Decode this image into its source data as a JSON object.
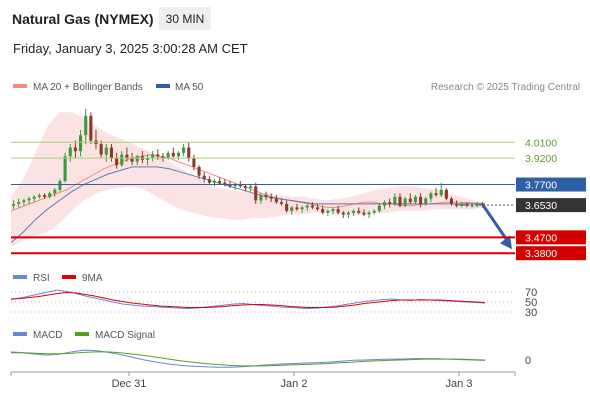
{
  "header": {
    "instrument": "Natural Gas (NYMEX)",
    "timeframe": "30 MIN",
    "datetime": "Friday, January 3, 2025 3:00:28 AM CET"
  },
  "credit": "Research © 2025 Trading Central",
  "colors": {
    "ma20": "#f08b80",
    "bollinger_fill": "#fbdada",
    "ma50": "#5b7bb5",
    "bull_candle": "#3c9a3c",
    "bear_candle": "#8a3a2a",
    "resistance": "#a6cf7a",
    "pivot": "#2f5fa7",
    "support": "#d40000",
    "last_price": "#333333",
    "rsi": "#6b86d6",
    "rsi_ma": "#e00000",
    "macd": "#6b86d6",
    "macd_signal": "#55a020",
    "arrow": "#2f5fa7"
  },
  "chart_data": [
    {
      "type": "candlestick",
      "legend": [
        "MA 20 + Bollinger Bands",
        "MA 50"
      ],
      "legend_position": "top-left",
      "ylim": [
        3.33,
        4.25
      ],
      "x_ticks": [
        "Dec 31",
        "Jan 2",
        "Jan 3"
      ],
      "levels": [
        {
          "name": "resistance-2",
          "value": 4.01,
          "label": "4.0100"
        },
        {
          "name": "resistance-1",
          "value": 3.92,
          "label": "3.9200"
        },
        {
          "name": "pivot",
          "value": 3.77,
          "label": "3.7700"
        },
        {
          "name": "last-price",
          "value": 3.653,
          "label": "3.6530"
        },
        {
          "name": "support-1",
          "value": 3.47,
          "label": "3.4700"
        },
        {
          "name": "support-2",
          "value": 3.38,
          "label": "3.3800"
        }
      ],
      "candles": [
        [
          3.65,
          3.68,
          3.63,
          3.66
        ],
        [
          3.66,
          3.69,
          3.64,
          3.67
        ],
        [
          3.67,
          3.69,
          3.65,
          3.68
        ],
        [
          3.68,
          3.7,
          3.66,
          3.69
        ],
        [
          3.69,
          3.71,
          3.67,
          3.7
        ],
        [
          3.7,
          3.72,
          3.69,
          3.71
        ],
        [
          3.71,
          3.72,
          3.69,
          3.7
        ],
        [
          3.7,
          3.73,
          3.69,
          3.72
        ],
        [
          3.72,
          3.75,
          3.7,
          3.74
        ],
        [
          3.74,
          3.8,
          3.73,
          3.79
        ],
        [
          3.79,
          3.95,
          3.78,
          3.93
        ],
        [
          3.93,
          4.0,
          3.9,
          3.98
        ],
        [
          3.98,
          4.02,
          3.92,
          3.96
        ],
        [
          3.96,
          4.08,
          3.93,
          4.05
        ],
        [
          4.05,
          4.2,
          4.0,
          4.16
        ],
        [
          4.16,
          4.18,
          4.0,
          4.02
        ],
        [
          4.02,
          4.08,
          3.97,
          4.0
        ],
        [
          4.0,
          4.02,
          3.92,
          3.94
        ],
        [
          3.94,
          4.0,
          3.9,
          3.98
        ],
        [
          3.98,
          4.0,
          3.9,
          3.92
        ],
        [
          3.92,
          3.95,
          3.86,
          3.88
        ],
        [
          3.88,
          3.96,
          3.87,
          3.94
        ],
        [
          3.94,
          3.98,
          3.9,
          3.92
        ],
        [
          3.92,
          3.95,
          3.88,
          3.9
        ],
        [
          3.9,
          3.94,
          3.88,
          3.93
        ],
        [
          3.93,
          3.96,
          3.89,
          3.91
        ],
        [
          3.91,
          3.94,
          3.88,
          3.92
        ],
        [
          3.92,
          3.96,
          3.9,
          3.94
        ],
        [
          3.94,
          3.97,
          3.91,
          3.93
        ],
        [
          3.93,
          3.95,
          3.9,
          3.92
        ],
        [
          3.92,
          3.96,
          3.91,
          3.95
        ],
        [
          3.95,
          3.98,
          3.92,
          3.93
        ],
        [
          3.93,
          3.96,
          3.91,
          3.95
        ],
        [
          3.95,
          4.0,
          3.93,
          3.98
        ],
        [
          3.98,
          4.01,
          3.9,
          3.92
        ],
        [
          3.92,
          3.94,
          3.85,
          3.87
        ],
        [
          3.87,
          3.88,
          3.8,
          3.82
        ],
        [
          3.82,
          3.84,
          3.78,
          3.8
        ],
        [
          3.8,
          3.82,
          3.77,
          3.78
        ],
        [
          3.78,
          3.8,
          3.76,
          3.79
        ],
        [
          3.79,
          3.81,
          3.77,
          3.78
        ],
        [
          3.78,
          3.8,
          3.76,
          3.77
        ],
        [
          3.77,
          3.79,
          3.75,
          3.76
        ],
        [
          3.76,
          3.78,
          3.74,
          3.77
        ],
        [
          3.77,
          3.79,
          3.75,
          3.76
        ],
        [
          3.76,
          3.77,
          3.73,
          3.75
        ],
        [
          3.75,
          3.77,
          3.73,
          3.76
        ],
        [
          3.76,
          3.78,
          3.66,
          3.68
        ],
        [
          3.68,
          3.72,
          3.66,
          3.71
        ],
        [
          3.71,
          3.73,
          3.68,
          3.7
        ],
        [
          3.7,
          3.72,
          3.67,
          3.69
        ],
        [
          3.69,
          3.71,
          3.66,
          3.67
        ],
        [
          3.67,
          3.69,
          3.65,
          3.66
        ],
        [
          3.66,
          3.68,
          3.61,
          3.62
        ],
        [
          3.62,
          3.65,
          3.6,
          3.64
        ],
        [
          3.64,
          3.66,
          3.62,
          3.63
        ],
        [
          3.63,
          3.65,
          3.61,
          3.64
        ],
        [
          3.64,
          3.66,
          3.62,
          3.65
        ],
        [
          3.65,
          3.67,
          3.63,
          3.64
        ],
        [
          3.64,
          3.66,
          3.62,
          3.63
        ],
        [
          3.63,
          3.65,
          3.6,
          3.61
        ],
        [
          3.61,
          3.63,
          3.59,
          3.62
        ],
        [
          3.62,
          3.64,
          3.6,
          3.63
        ],
        [
          3.63,
          3.65,
          3.6,
          3.61
        ],
        [
          3.61,
          3.62,
          3.58,
          3.6
        ],
        [
          3.6,
          3.62,
          3.58,
          3.61
        ],
        [
          3.61,
          3.63,
          3.59,
          3.62
        ],
        [
          3.62,
          3.64,
          3.6,
          3.61
        ],
        [
          3.61,
          3.63,
          3.59,
          3.6
        ],
        [
          3.6,
          3.62,
          3.58,
          3.61
        ],
        [
          3.61,
          3.63,
          3.6,
          3.62
        ],
        [
          3.62,
          3.66,
          3.61,
          3.65
        ],
        [
          3.65,
          3.68,
          3.63,
          3.67
        ],
        [
          3.67,
          3.69,
          3.64,
          3.66
        ],
        [
          3.66,
          3.72,
          3.65,
          3.7
        ],
        [
          3.7,
          3.72,
          3.64,
          3.65
        ],
        [
          3.65,
          3.7,
          3.64,
          3.69
        ],
        [
          3.69,
          3.72,
          3.66,
          3.67
        ],
        [
          3.67,
          3.71,
          3.66,
          3.7
        ],
        [
          3.7,
          3.72,
          3.64,
          3.66
        ],
        [
          3.66,
          3.7,
          3.65,
          3.69
        ],
        [
          3.69,
          3.73,
          3.67,
          3.72
        ],
        [
          3.72,
          3.75,
          3.7,
          3.71
        ],
        [
          3.71,
          3.78,
          3.7,
          3.74
        ],
        [
          3.74,
          3.75,
          3.68,
          3.69
        ],
        [
          3.69,
          3.7,
          3.65,
          3.66
        ],
        [
          3.66,
          3.68,
          3.64,
          3.65
        ],
        [
          3.65,
          3.67,
          3.64,
          3.66
        ],
        [
          3.66,
          3.67,
          3.64,
          3.65
        ],
        [
          3.65,
          3.66,
          3.64,
          3.65
        ],
        [
          3.65,
          3.67,
          3.64,
          3.66
        ],
        [
          3.66,
          3.67,
          3.64,
          3.653
        ]
      ],
      "ma20": [
        3.62,
        3.64,
        3.66,
        3.68,
        3.7,
        3.72,
        3.74,
        3.77,
        3.8,
        3.83,
        3.86,
        3.88,
        3.9,
        3.92,
        3.93,
        3.94,
        3.93,
        3.92,
        3.9,
        3.88,
        3.86,
        3.84,
        3.82,
        3.8,
        3.78,
        3.76,
        3.74,
        3.72,
        3.7,
        3.69,
        3.68,
        3.67,
        3.66,
        3.65,
        3.64,
        3.64,
        3.65,
        3.66,
        3.67,
        3.67,
        3.66,
        3.66,
        3.65,
        3.65,
        3.655,
        3.66,
        3.665,
        3.67,
        3.67,
        3.668,
        3.665,
        3.66
      ],
      "bb_upper": [
        3.7,
        3.8,
        3.95,
        4.1,
        4.18,
        4.18,
        4.15,
        4.1,
        4.06,
        4.03,
        4.0,
        3.97,
        3.94,
        3.9,
        3.86,
        3.82,
        3.78,
        3.75,
        3.74,
        3.73,
        3.72,
        3.72,
        3.71,
        3.7,
        3.7,
        3.69,
        3.68,
        3.69,
        3.7,
        3.72,
        3.74,
        3.75,
        3.76,
        3.76,
        3.75,
        3.74,
        3.72,
        3.7,
        3.68,
        3.67
      ],
      "bb_lower": [
        3.42,
        3.45,
        3.48,
        3.5,
        3.55,
        3.62,
        3.68,
        3.72,
        3.74,
        3.75,
        3.76,
        3.74,
        3.7,
        3.66,
        3.63,
        3.61,
        3.59,
        3.58,
        3.57,
        3.57,
        3.58,
        3.58,
        3.59,
        3.6,
        3.6,
        3.61,
        3.61,
        3.6,
        3.6,
        3.6,
        3.61,
        3.61,
        3.62,
        3.62,
        3.62,
        3.63,
        3.63,
        3.63,
        3.63,
        3.64
      ],
      "ma50": [
        3.44,
        3.5,
        3.57,
        3.63,
        3.68,
        3.73,
        3.77,
        3.8,
        3.83,
        3.85,
        3.87,
        3.87,
        3.87,
        3.86,
        3.84,
        3.82,
        3.8,
        3.78,
        3.76,
        3.74,
        3.72,
        3.7,
        3.69,
        3.68,
        3.67,
        3.66,
        3.66,
        3.66,
        3.66,
        3.66,
        3.66,
        3.66,
        3.66,
        3.66,
        3.66,
        3.66,
        3.66,
        3.66,
        3.66,
        3.66
      ]
    },
    {
      "type": "line",
      "name": "rsi-panel",
      "legend": [
        "RSI",
        "9MA"
      ],
      "y_ticks": [
        "70",
        "50",
        "30"
      ],
      "ylim": [
        20,
        80
      ],
      "rsi": [
        55,
        58,
        62,
        66,
        70,
        74,
        71,
        67,
        62,
        58,
        54,
        50,
        46,
        44,
        42,
        41,
        40,
        39,
        38,
        37,
        38,
        40,
        42,
        44,
        46,
        47,
        45,
        43,
        42,
        40,
        39,
        38,
        37,
        38,
        40,
        42,
        45,
        48,
        51,
        53,
        55,
        56,
        54,
        53,
        55,
        54,
        53,
        52,
        51,
        50,
        49,
        48
      ],
      "rsi_ma": [
        56,
        57,
        59,
        61,
        64,
        67,
        69,
        68,
        65,
        62,
        58,
        54,
        51,
        48,
        46,
        44,
        42,
        41,
        40,
        39,
        39,
        39,
        40,
        41,
        43,
        44,
        45,
        45,
        44,
        43,
        41,
        40,
        39,
        39,
        39,
        40,
        42,
        44,
        47,
        49,
        51,
        53,
        54,
        54,
        54,
        54,
        54,
        53,
        52,
        51,
        50,
        49
      ]
    },
    {
      "type": "line",
      "name": "macd-panel",
      "legend": [
        "MACD",
        "MACD Signal"
      ],
      "y_ticks": [
        "0"
      ],
      "ylim": [
        -0.04,
        0.04
      ],
      "macd": [
        0.018,
        0.016,
        0.013,
        0.011,
        0.013,
        0.018,
        0.022,
        0.021,
        0.017,
        0.012,
        0.006,
        0.0,
        -0.005,
        -0.009,
        -0.012,
        -0.014,
        -0.015,
        -0.016,
        -0.016,
        -0.015,
        -0.013,
        -0.011,
        -0.009,
        -0.008,
        -0.007,
        -0.006,
        -0.005,
        -0.003,
        -0.001,
        0.0,
        0.001,
        0.002,
        0.002,
        0.003,
        0.003,
        0.003,
        0.002,
        0.001,
        0.0,
        -0.001
      ],
      "macd_signal": [
        0.016,
        0.016,
        0.015,
        0.014,
        0.014,
        0.015,
        0.017,
        0.018,
        0.018,
        0.016,
        0.013,
        0.01,
        0.006,
        0.002,
        -0.002,
        -0.005,
        -0.008,
        -0.01,
        -0.012,
        -0.013,
        -0.013,
        -0.013,
        -0.012,
        -0.011,
        -0.01,
        -0.009,
        -0.008,
        -0.006,
        -0.005,
        -0.003,
        -0.002,
        -0.001,
        0.0,
        0.001,
        0.002,
        0.002,
        0.002,
        0.002,
        0.001,
        0.0
      ]
    }
  ]
}
